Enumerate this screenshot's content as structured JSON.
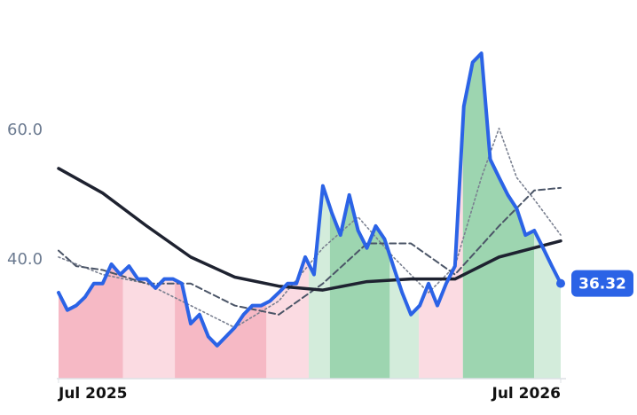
{
  "chart_data": {
    "type": "line",
    "x": [
      0,
      1,
      2,
      3,
      4,
      5,
      6,
      7,
      8,
      9,
      10,
      11,
      12,
      13,
      14,
      15,
      16,
      17,
      18,
      19,
      20,
      21,
      22,
      23,
      24,
      25,
      26,
      27,
      28,
      29,
      30,
      31,
      32,
      33,
      34,
      35,
      36,
      37,
      38,
      39,
      40,
      41,
      42,
      43,
      44,
      45,
      46,
      47,
      48,
      49,
      50,
      51,
      52,
      53,
      54,
      55,
      56,
      57
    ],
    "xlim": [
      0,
      57
    ],
    "xticks": [
      {
        "value": 0,
        "label": "Jul 2025"
      },
      {
        "value": 57,
        "label": "Jul 2026"
      }
    ],
    "ylim": [
      21.6,
      77.4
    ],
    "yticks": [
      {
        "value": 40,
        "label": "40.0"
      },
      {
        "value": 60,
        "label": "60.0"
      }
    ],
    "series": [
      {
        "color": "#2b63e6",
        "values": [
          34.9,
          32.2,
          32.9,
          34.2,
          36.3,
          36.3,
          39.3,
          37.7,
          39.0,
          37.0,
          37.0,
          35.6,
          37.0,
          37.0,
          36.3,
          30.1,
          31.5,
          28.1,
          26.7,
          28.1,
          29.5,
          31.5,
          32.9,
          32.9,
          33.6,
          34.9,
          36.3,
          36.3,
          40.4,
          37.7,
          51.4,
          47.3,
          43.8,
          50.0,
          44.5,
          41.8,
          45.2,
          43.2,
          39.0,
          34.9,
          31.5,
          32.9,
          36.3,
          32.9,
          36.3,
          39.0,
          63.7,
          70.5,
          71.9,
          55.5,
          52.7,
          50.0,
          47.9,
          43.8,
          44.5,
          41.8,
          39.0,
          36.32
        ]
      },
      {
        "color": "#1e2230",
        "x": [
          0,
          5,
          10,
          15,
          20,
          25,
          30,
          35,
          40,
          45,
          50,
          57
        ],
        "values": [
          54.1,
          50.3,
          45.2,
          40.4,
          37.3,
          35.9,
          35.3,
          36.6,
          37.0,
          37.0,
          40.4,
          42.9
        ]
      },
      {
        "color": "#4b5567",
        "x": [
          0,
          2,
          5,
          10,
          15,
          20,
          25,
          30,
          35,
          40,
          45,
          50,
          54,
          57
        ],
        "values": [
          41.4,
          39.0,
          38.4,
          36.3,
          36.3,
          32.9,
          31.5,
          36.3,
          42.5,
          42.5,
          37.7,
          45.2,
          50.7,
          51.1
        ]
      },
      {
        "color": "#7a8090",
        "x": [
          0,
          5,
          10,
          15,
          20,
          25,
          30,
          34,
          38,
          42,
          45,
          48,
          50,
          52,
          54,
          57
        ],
        "values": [
          40.4,
          37.7,
          36.3,
          32.9,
          29.5,
          33.6,
          41.8,
          46.6,
          40.4,
          34.9,
          39.0,
          52.7,
          60.3,
          52.7,
          49.3,
          43.8
        ]
      }
    ],
    "regions": [
      {
        "from": 0,
        "to": 7.3,
        "color": "#f6b9c5"
      },
      {
        "from": 7.3,
        "to": 13.2,
        "color": "#fbdbe2"
      },
      {
        "from": 13.2,
        "to": 23.6,
        "color": "#f6b9c5"
      },
      {
        "from": 23.6,
        "to": 28.4,
        "color": "#fbdbe2"
      },
      {
        "from": 28.4,
        "to": 30.8,
        "color": "#d3ecdb"
      },
      {
        "from": 30.8,
        "to": 37.6,
        "color": "#9dd5b0"
      },
      {
        "from": 37.6,
        "to": 40.9,
        "color": "#d3ecdb"
      },
      {
        "from": 40.9,
        "to": 45.9,
        "color": "#fbdbe2"
      },
      {
        "from": 45.9,
        "to": 54,
        "color": "#9dd5b0"
      },
      {
        "from": 54,
        "to": 57,
        "color": "#d3ecdb"
      }
    ]
  }
}
